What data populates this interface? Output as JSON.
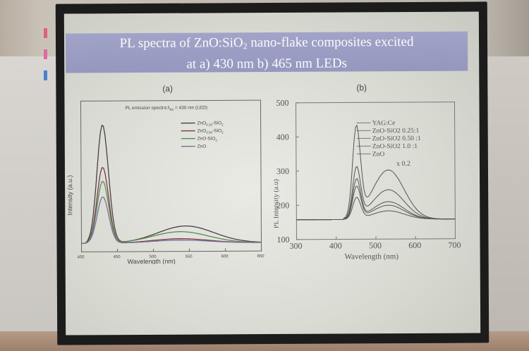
{
  "slide": {
    "title_line1_pre": "PL spectra of ZnO:SiO",
    "title_line1_sub": "2",
    "title_line1_post": " nano-flake composites excited",
    "title_line2": "at a) 430 nm b) 465 nm LEDs"
  },
  "panel_a": {
    "label": "(a)",
    "inner_title": "PL emission spectra:λ",
    "inner_title_sub": "ex",
    "inner_title_post": " = 430 nm (LED)",
    "ylabel": "Intensity (a.u.)",
    "xlabel": "Wavelength (nm)",
    "xticks": [
      "400",
      "450",
      "500",
      "550",
      "600",
      "650"
    ],
    "legend": [
      {
        "pre": "ZnO",
        "sub": "0.25",
        "post": "-SiO",
        "sub2": "2"
      },
      {
        "pre": "ZnO",
        "sub": "0.50",
        "post": "-SiO",
        "sub2": "2"
      },
      {
        "pre": "ZnO-SiO",
        "sub": "",
        "post": "",
        "sub2": "2"
      },
      {
        "pre": "ZnO",
        "sub": "",
        "post": "",
        "sub2": ""
      }
    ],
    "colors": [
      "#4a3f44",
      "#7a3a44",
      "#5b8a52",
      "#7a6fa0"
    ]
  },
  "panel_b": {
    "label": "(b)",
    "ylabel": "PL Intensity (a.u)",
    "xlabel": "Wavelength (nm)",
    "yticks": [
      "500",
      "400",
      "300",
      "200",
      "100"
    ],
    "xticks": [
      "300",
      "400",
      "500",
      "600",
      "700"
    ],
    "legend": [
      "YAG:Ce",
      "ZnO-SiO2  0.25:1",
      "ZnO-SiO2  0.50 :1",
      "ZnO-SiO2  1.0 :1",
      "ZnO"
    ],
    "annotation": "x 0.2"
  }
}
